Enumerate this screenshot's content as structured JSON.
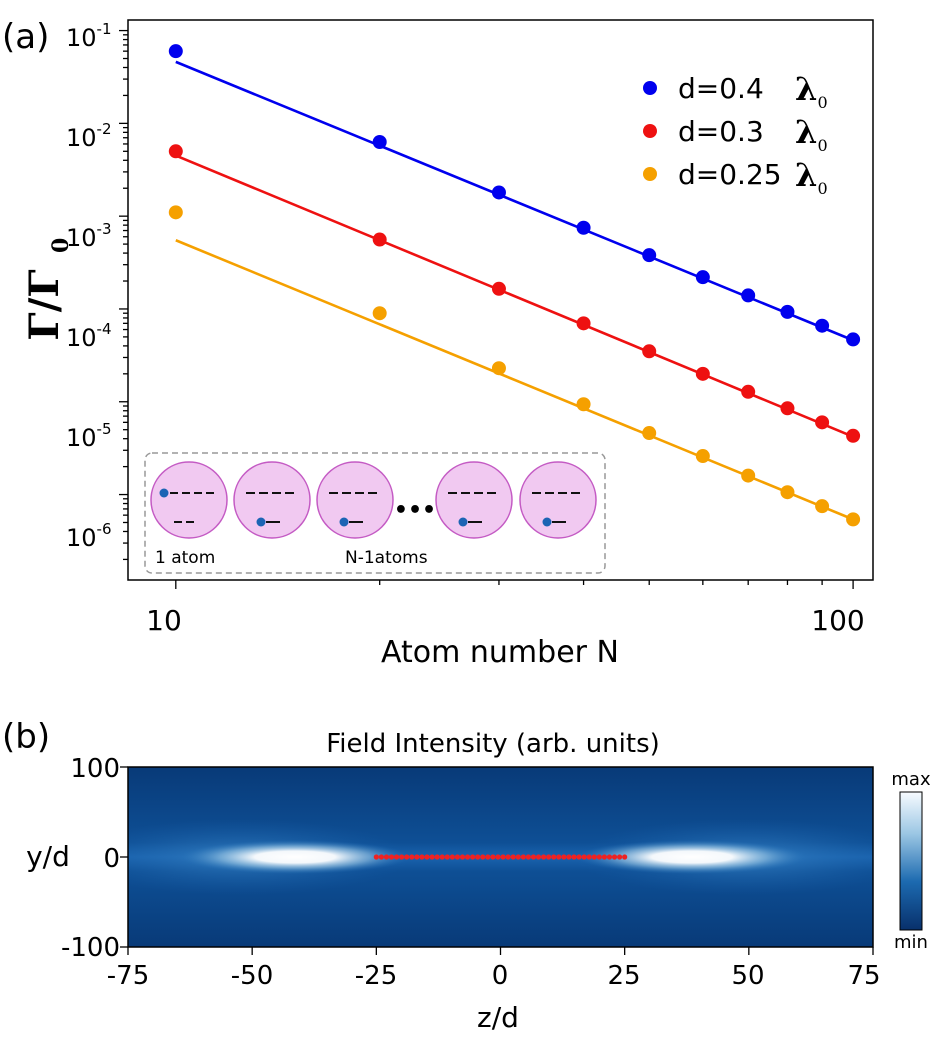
{
  "panel_a": {
    "label": "(a)",
    "ylabel_main": "Γ/Γ",
    "ylabel_sub": "0",
    "xlabel": "Atom number N",
    "x_ticks": [
      "10",
      "100"
    ],
    "y_ticks": [
      {
        "base": "10",
        "exp": "-1"
      },
      {
        "base": "10",
        "exp": "-2"
      },
      {
        "base": "10",
        "exp": "-3"
      },
      {
        "base": "10",
        "exp": "-4"
      },
      {
        "base": "10",
        "exp": "-5"
      },
      {
        "base": "10",
        "exp": "-6"
      }
    ],
    "legend": [
      {
        "prefix": "d=0.4",
        "lam": "λ",
        "sub": "0",
        "color": "#0000ee"
      },
      {
        "prefix": "d=0.3",
        "lam": "λ",
        "sub": "0",
        "color": "#ee1111"
      },
      {
        "prefix": "d=0.25",
        "lam": "λ",
        "sub": "0",
        "color": "#f5a000"
      }
    ],
    "inset": {
      "label_left": "1 atom",
      "label_right": "N-1atoms",
      "ellipsis": "•••"
    }
  },
  "panel_b": {
    "label": "(b)",
    "title": "Field Intensity (arb. units)",
    "ylabel": "y/d",
    "xlabel": "z/d",
    "x_ticks": [
      "-75",
      "-50",
      "-25",
      "0",
      "25",
      "50",
      "75"
    ],
    "y_ticks": [
      "100",
      "0",
      "-100"
    ],
    "colorbar_max": "max",
    "colorbar_min": "min"
  },
  "chart_data": [
    {
      "type": "scatter",
      "panel": "a",
      "xscale": "log",
      "yscale": "log",
      "xlim": [
        8.5,
        107
      ],
      "ylim": [
        1.2e-07,
        0.13
      ],
      "xlabel": "Atom number N",
      "ylabel": "Γ/Γ0",
      "legend_position": "top-right",
      "series": [
        {
          "name": "d=0.4 λ0",
          "color": "#0000ee",
          "points_x": [
            10,
            20,
            30,
            40,
            50,
            60,
            70,
            80,
            90,
            100
          ],
          "points_y": [
            0.06,
            0.0063,
            0.0018,
            0.00075,
            0.00038,
            0.00022,
            0.00014,
            9.3e-05,
            6.6e-05,
            4.7e-05
          ],
          "fit_x": [
            10,
            100
          ],
          "fit_y": [
            0.046,
            4.6e-05
          ]
        },
        {
          "name": "d=0.3 λ0",
          "color": "#ee1111",
          "points_x": [
            10,
            20,
            30,
            40,
            50,
            60,
            70,
            80,
            90,
            100
          ],
          "points_y": [
            0.005,
            0.00056,
            0.000165,
            7e-05,
            3.5e-05,
            2e-05,
            1.28e-05,
            8.5e-06,
            6e-06,
            4.3e-06
          ],
          "fit_x": [
            10,
            100
          ],
          "fit_y": [
            0.0045,
            4.2e-06
          ]
        },
        {
          "name": "d=0.25 λ0",
          "color": "#f5a000",
          "points_x": [
            10,
            20,
            30,
            40,
            50,
            60,
            70,
            80,
            90,
            100
          ],
          "points_y": [
            0.0011,
            9e-05,
            2.3e-05,
            9.4e-06,
            4.6e-06,
            2.6e-06,
            1.6e-06,
            1.06e-06,
            7.5e-07,
            5.4e-07
          ],
          "fit_x": [
            10,
            100
          ],
          "fit_y": [
            0.00055,
            5.4e-07
          ]
        }
      ]
    },
    {
      "type": "heatmap",
      "panel": "b",
      "title": "Field Intensity (arb. units)",
      "xlabel": "z/d",
      "ylabel": "y/d",
      "xlim": [
        -75,
        75
      ],
      "ylim": [
        -100,
        100
      ],
      "colorbar": [
        "min",
        "max"
      ],
      "atom_chain": {
        "z_start": -25,
        "z_end": 25,
        "y": 0,
        "color": "#ee2222"
      }
    }
  ]
}
